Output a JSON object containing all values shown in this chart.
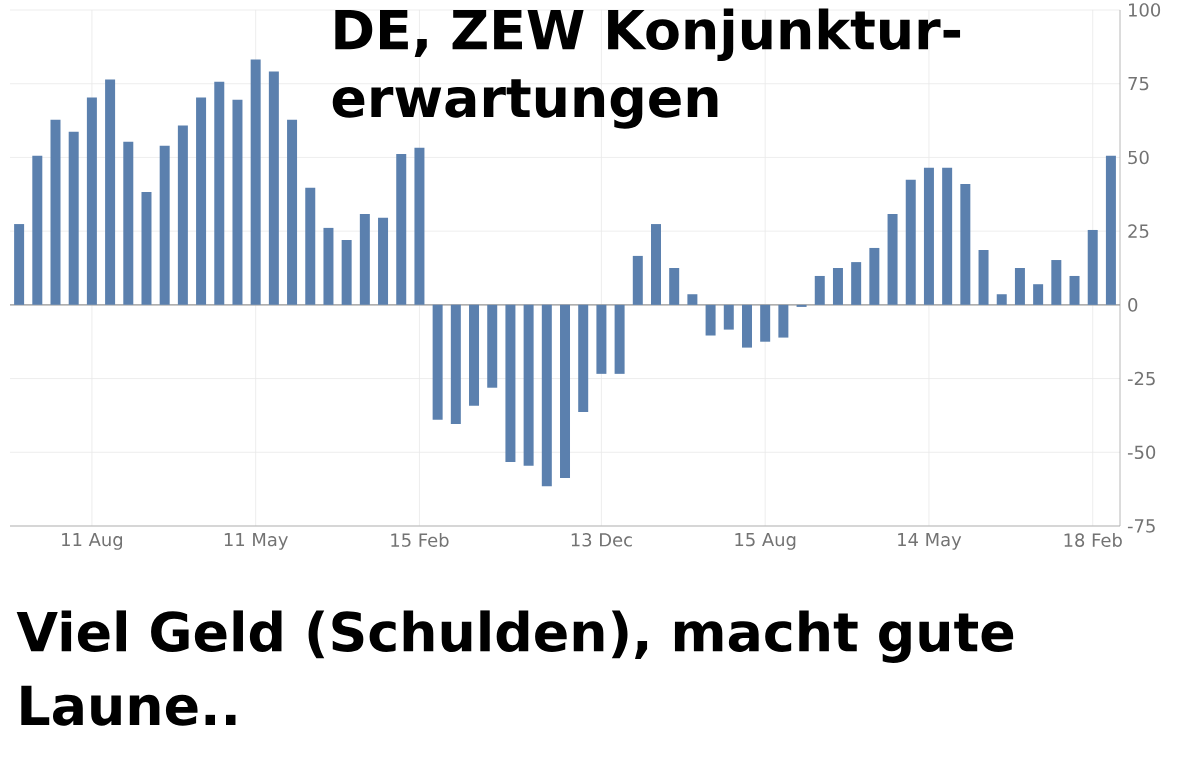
{
  "chart_data": {
    "type": "bar",
    "title": "DE, ZEW Konjunktur-erwartungen",
    "categories": [
      null,
      null,
      null,
      null,
      "11 Aug",
      null,
      null,
      null,
      null,
      null,
      null,
      null,
      null,
      "11 May",
      null,
      null,
      null,
      null,
      null,
      null,
      null,
      null,
      "15 Feb",
      null,
      null,
      null,
      null,
      null,
      null,
      null,
      null,
      null,
      "13 Dec",
      null,
      null,
      null,
      null,
      null,
      null,
      null,
      null,
      "15 Aug",
      null,
      null,
      null,
      null,
      null,
      null,
      null,
      null,
      "14 May",
      null,
      null,
      null,
      null,
      null,
      null,
      null,
      null,
      "18 Feb",
      null
    ],
    "values": [
      27.4,
      50.6,
      62.8,
      58.7,
      70.3,
      76.4,
      55.3,
      38.3,
      54.0,
      60.8,
      70.3,
      75.7,
      69.6,
      83.2,
      79.1,
      62.8,
      39.7,
      26.1,
      22.0,
      30.8,
      29.5,
      51.2,
      53.3,
      -39.0,
      -40.4,
      -34.2,
      -28.1,
      -53.3,
      -54.6,
      -61.5,
      -58.7,
      -36.3,
      -23.4,
      -23.4,
      16.6,
      27.4,
      12.5,
      3.6,
      -10.4,
      -8.4,
      -14.5,
      -12.5,
      -11.1,
      -0.7,
      9.8,
      12.5,
      14.5,
      19.3,
      30.8,
      42.4,
      46.5,
      46.5,
      41.0,
      18.6,
      3.6,
      12.5,
      7.0,
      15.2,
      9.8,
      25.4,
      50.6
    ],
    "color": "#5b80ae",
    "ylim": [
      -75,
      100
    ],
    "yticks": [
      -75,
      -50,
      -25,
      0,
      25,
      50,
      75,
      100
    ],
    "grid": true,
    "annotations": [
      "Viel Geld (Schulden), macht gute Laune.."
    ]
  }
}
